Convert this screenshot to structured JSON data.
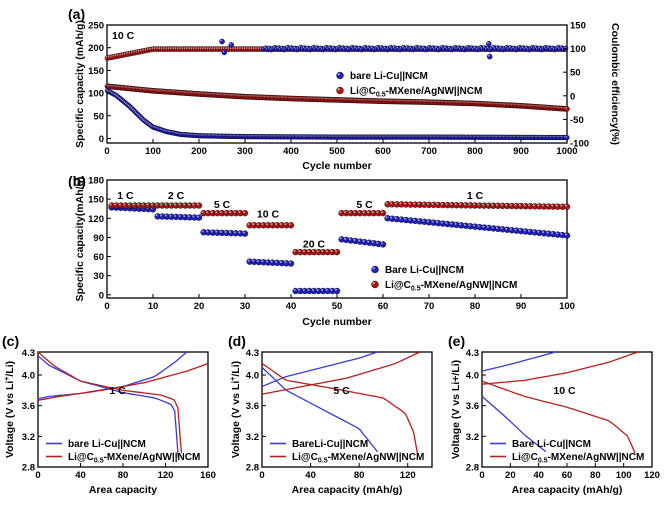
{
  "colors": {
    "blue": "#1f1fb8",
    "red": "#a31515",
    "blue_line": "#3b3bd6",
    "red_line": "#b52020"
  },
  "chart_data": [
    {
      "panel": "(a)",
      "type": "scatter",
      "annotation": "10 C",
      "xlabel": "Cycle number",
      "ylabel": "Specific capacity (mAh/g)",
      "y2label": "Coulombic efficiency(%)",
      "xlim": [
        0,
        1000
      ],
      "ylim": [
        -10,
        250
      ],
      "y2lim": [
        -100,
        150
      ],
      "xticks": [
        0,
        100,
        200,
        300,
        400,
        500,
        600,
        700,
        800,
        900,
        1000
      ],
      "yticks": [
        0,
        50,
        100,
        150,
        200,
        250
      ],
      "y2ticks": [
        -100,
        -50,
        0,
        50,
        100,
        150
      ],
      "legend_position": "center-right",
      "series": [
        {
          "name": "bare Li-Cu||NCM",
          "axis": "capacity",
          "color": "blue",
          "x": [
            1,
            20,
            50,
            80,
            100,
            130,
            160,
            200,
            300,
            500,
            700,
            1000
          ],
          "y": [
            105,
            95,
            70,
            40,
            25,
            15,
            9,
            6,
            4,
            3,
            3,
            2
          ]
        },
        {
          "name": "Li@C0.5-MXene/AgNW||NCM",
          "axis": "capacity",
          "color": "red",
          "x": [
            1,
            50,
            100,
            200,
            300,
            400,
            500,
            600,
            700,
            800,
            900,
            1000
          ],
          "y": [
            115,
            110,
            105,
            98,
            92,
            88,
            85,
            82,
            80,
            77,
            72,
            65
          ]
        },
        {
          "name": "bare Li-Cu||NCM",
          "axis": "efficiency",
          "color": "blue",
          "x": [
            1,
            100,
            200,
            400,
            600,
            800,
            1000
          ],
          "y": [
            100,
            100,
            99,
            100,
            100,
            100,
            100
          ],
          "outliers": [
            [
              250,
              115
            ],
            [
              270,
              108
            ],
            [
              255,
              92
            ],
            [
              830,
              110
            ],
            [
              832,
              83
            ]
          ]
        },
        {
          "name": "Li@C0.5-MXene/AgNW||NCM",
          "axis": "efficiency",
          "color": "red",
          "x": [
            1,
            100,
            200,
            400,
            600,
            800,
            1000
          ],
          "y": [
            80,
            99,
            99,
            99,
            99,
            99,
            99
          ]
        }
      ],
      "legend": [
        "bare Li-Cu||NCM",
        "Li@C",
        "0.5",
        "-MXene/AgNW||NCM"
      ]
    },
    {
      "panel": "(b)",
      "type": "scatter",
      "xlabel": "Cycle number",
      "ylabel": "Specific capacity(mAh/g)",
      "xlim": [
        0,
        100
      ],
      "ylim": [
        -5,
        180
      ],
      "xticks": [
        0,
        10,
        20,
        30,
        40,
        50,
        60,
        70,
        80,
        90,
        100
      ],
      "yticks": [
        0,
        30,
        60,
        90,
        120,
        150,
        180
      ],
      "rate_labels": [
        {
          "text": "1 C",
          "x": 4,
          "y": 150
        },
        {
          "text": "2 C",
          "x": 15,
          "y": 150
        },
        {
          "text": "5 C",
          "x": 25,
          "y": 136
        },
        {
          "text": "10 C",
          "x": 35,
          "y": 121
        },
        {
          "text": "20 C",
          "x": 45,
          "y": 74
        },
        {
          "text": "5 C",
          "x": 56,
          "y": 136
        },
        {
          "text": "1 C",
          "x": 80,
          "y": 150
        }
      ],
      "legend_position": "lower-right",
      "series": [
        {
          "name": "Bare Li-Cu||NCM",
          "color": "blue",
          "segments": [
            [
              1,
              10,
              137,
              134
            ],
            [
              11,
              20,
              123,
              121
            ],
            [
              21,
              30,
              98,
              96
            ],
            [
              31,
              40,
              52,
              49
            ],
            [
              41,
              50,
              6,
              6
            ],
            [
              51,
              60,
              87,
              79
            ],
            [
              61,
              100,
              120,
              93
            ]
          ]
        },
        {
          "name": "Li@C0.5-MXene/AgNW||NCM",
          "color": "red",
          "segments": [
            [
              1,
              10,
              140,
              140
            ],
            [
              11,
              20,
              140,
              140
            ],
            [
              21,
              30,
              128,
              128
            ],
            [
              31,
              40,
              109,
              109
            ],
            [
              41,
              50,
              67,
              67
            ],
            [
              51,
              60,
              128,
              128
            ],
            [
              61,
              100,
              142,
              138
            ]
          ]
        }
      ],
      "legend": [
        "Bare Li-Cu||NCM",
        "Li@C",
        "0.5",
        "-MXene/AgNW||NCM"
      ]
    },
    {
      "panel": "(c)",
      "type": "line",
      "annotation": "1 C",
      "xlabel": "Area capacity",
      "ylabel": "Voltage (V vs Li",
      "ylabel_sup": "+",
      "ylabel_end": "/Li)",
      "xlim": [
        0,
        160
      ],
      "ylim": [
        2.8,
        4.3
      ],
      "xticks": [
        0,
        40,
        80,
        120,
        160
      ],
      "yticks": [
        2.8,
        3.2,
        3.6,
        4.0
      ],
      "ytick_labels": [
        "2.8",
        "3.2",
        "3.6",
        "4.0"
      ],
      "ymax_label": "4.3",
      "series": [
        {
          "name": "bare Li-Cu||NCM",
          "color": "blue",
          "charge": [
            [
              0,
              3.69
            ],
            [
              10,
              3.72
            ],
            [
              40,
              3.76
            ],
            [
              80,
              3.85
            ],
            [
              110,
              3.98
            ],
            [
              130,
              4.18
            ],
            [
              140,
              4.3
            ]
          ],
          "discharge": [
            [
              0,
              4.25
            ],
            [
              10,
              4.13
            ],
            [
              40,
              3.92
            ],
            [
              80,
              3.77
            ],
            [
              110,
              3.7
            ],
            [
              125,
              3.62
            ],
            [
              130,
              3.5
            ],
            [
              132,
              2.92
            ]
          ]
        },
        {
          "name": "Li@C0.5-MXene/AgNW||NCM",
          "color": "red",
          "charge": [
            [
              0,
              3.67
            ],
            [
              20,
              3.72
            ],
            [
              60,
              3.8
            ],
            [
              100,
              3.9
            ],
            [
              140,
              4.05
            ],
            [
              160,
              4.15
            ]
          ],
          "discharge": [
            [
              0,
              4.3
            ],
            [
              15,
              4.12
            ],
            [
              40,
              3.92
            ],
            [
              80,
              3.8
            ],
            [
              115,
              3.74
            ],
            [
              128,
              3.68
            ],
            [
              134,
              3.5
            ],
            [
              135,
              2.98
            ]
          ]
        }
      ],
      "legend": [
        "bare Li-Cu||NCM",
        "Li@C",
        "0.5",
        "-MXene/AgNW||NCM"
      ]
    },
    {
      "panel": "(d)",
      "type": "line",
      "annotation": "5 C",
      "xlabel": "Area capacity (mAh/g)",
      "ylabel": "Voltage (V vs Li",
      "ylabel_sup": "+",
      "ylabel_end": "/Li)",
      "xlim": [
        0,
        140
      ],
      "ylim": [
        2.8,
        4.3
      ],
      "xticks": [
        0,
        40,
        80,
        120
      ],
      "yticks": [
        2.8,
        3.2,
        3.6,
        4.0
      ],
      "ytick_labels": [
        "2.8",
        "3.2",
        "3.6",
        "4.0"
      ],
      "ymax_label": "4.3",
      "series": [
        {
          "name": "BareLi-Cu||NCM",
          "color": "blue",
          "charge": [
            [
              0,
              3.85
            ],
            [
              20,
              3.98
            ],
            [
              50,
              4.1
            ],
            [
              80,
              4.22
            ],
            [
              95,
              4.3
            ]
          ],
          "discharge": [
            [
              0,
              4.1
            ],
            [
              20,
              3.8
            ],
            [
              50,
              3.55
            ],
            [
              80,
              3.3
            ],
            [
              95,
              3.0
            ]
          ]
        },
        {
          "name": "Li@C0.5-MXene/AgNW||NCM",
          "color": "red",
          "charge": [
            [
              0,
              3.75
            ],
            [
              30,
              3.84
            ],
            [
              70,
              3.96
            ],
            [
              110,
              4.15
            ],
            [
              130,
              4.3
            ]
          ],
          "discharge": [
            [
              0,
              4.15
            ],
            [
              20,
              3.93
            ],
            [
              60,
              3.82
            ],
            [
              100,
              3.7
            ],
            [
              118,
              3.5
            ],
            [
              125,
              3.25
            ],
            [
              128,
              2.98
            ]
          ]
        }
      ],
      "legend": [
        "BareLi-Cu||NCM",
        "Li@C",
        "0.5",
        "-MXene/AgNW||NCM"
      ]
    },
    {
      "panel": "(e)",
      "type": "line",
      "annotation": "10 C",
      "xlabel": "Area capacity (mAh/g)",
      "ylabel": "Voltage (V vs Li+/Li)",
      "xlim": [
        0,
        120
      ],
      "ylim": [
        2.8,
        4.3
      ],
      "xticks": [
        0,
        20,
        40,
        60,
        80,
        100,
        120
      ],
      "yticks": [
        2.8,
        3.2,
        3.6,
        4.0
      ],
      "ytick_labels": [
        "2.8",
        "3.2",
        "3.6",
        "4.0"
      ],
      "ymax_label": "4.3",
      "series": [
        {
          "name": "Bare Li-Cu||NCM",
          "color": "blue",
          "charge": [
            [
              0,
              4.05
            ],
            [
              20,
              4.14
            ],
            [
              40,
              4.24
            ],
            [
              52,
              4.3
            ]
          ],
          "discharge": [
            [
              0,
              3.72
            ],
            [
              15,
              3.48
            ],
            [
              30,
              3.22
            ],
            [
              45,
              3.0
            ]
          ]
        },
        {
          "name": "Li@C0.5-MXene/AgNW||NCM",
          "color": "red",
          "charge": [
            [
              0,
              3.88
            ],
            [
              30,
              3.93
            ],
            [
              60,
              4.03
            ],
            [
              90,
              4.17
            ],
            [
              110,
              4.3
            ]
          ],
          "discharge": [
            [
              0,
              3.92
            ],
            [
              30,
              3.72
            ],
            [
              60,
              3.58
            ],
            [
              90,
              3.4
            ],
            [
              103,
              3.2
            ],
            [
              108,
              2.98
            ]
          ]
        }
      ],
      "legend": [
        "Bare Li-Cu||NCM",
        "Li@C",
        "0.5",
        "-MXene/AgNW||NCM"
      ]
    }
  ]
}
